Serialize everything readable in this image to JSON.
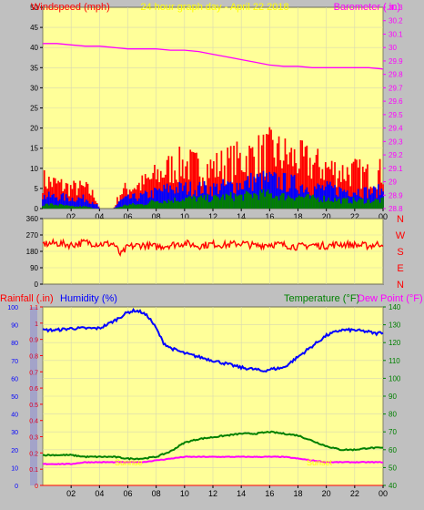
{
  "header": {
    "windspeed_label": "Windspeed (mph)",
    "title": "24 hour graph day - April 22 2018",
    "barometer_label": "Barometer (.in)"
  },
  "direction_letters": [
    "N",
    "W",
    "S",
    "E",
    "N"
  ],
  "labels_bottom": {
    "rainfall": "Rainfall (.in)",
    "humidity": "Humidity (%)",
    "temperature": "Temperature (°F)",
    "dewpoint": "Dew Point (°F)"
  },
  "colors": {
    "plot_bg": "#ffff99",
    "frame_bg": "#c0c0c0",
    "wind_gust": "#ff0000",
    "wind_avg": "#0000ff",
    "wind_low": "#008000",
    "barometer": "#ff00ff",
    "direction": "#ff0000",
    "humidity": "#0000ff",
    "temperature": "#008000",
    "dewpoint": "#ff00ff",
    "rain": "#ff0000",
    "title": "#ffff00"
  },
  "annotations": {
    "sunrise": "Sunrise",
    "sunset": "Sunset"
  },
  "chart_data": [
    {
      "type": "line",
      "name": "wind-barometer",
      "x_ticks": [
        "02",
        "04",
        "06",
        "08",
        "10",
        "12",
        "14",
        "16",
        "18",
        "20",
        "22",
        "00"
      ],
      "y_left_ticks": [
        0,
        5,
        10,
        15,
        20,
        25,
        30,
        35,
        40,
        45,
        50
      ],
      "ylim_left": [
        0,
        50
      ],
      "y_right_ticks": [
        "28.8",
        "28.9",
        "29",
        "29.1",
        "29.2",
        "29.3",
        "29.4",
        "29.5",
        "29.6",
        "29.7",
        "29.8",
        "29.9",
        "30",
        "30.1",
        "30.2",
        "30.3"
      ],
      "ylim_right": [
        28.8,
        30.3
      ],
      "series": [
        {
          "name": "Windspeed gust",
          "x": [
            0,
            1,
            2,
            3,
            3.7,
            4,
            5,
            5.5,
            6,
            7,
            8,
            9,
            10,
            11,
            12,
            13,
            14,
            15,
            16,
            17,
            18,
            19,
            20,
            21,
            22,
            23,
            24
          ],
          "values": [
            7,
            6,
            5,
            5,
            3,
            0,
            0,
            4,
            5,
            6,
            8,
            10,
            11,
            10,
            10,
            11,
            12,
            13,
            14,
            13,
            12,
            11,
            10,
            9,
            9,
            8,
            9
          ]
        },
        {
          "name": "Windspeed avg",
          "x": [
            0,
            1,
            2,
            3,
            3.7,
            4,
            5,
            5.5,
            6,
            7,
            8,
            9,
            10,
            11,
            12,
            13,
            14,
            15,
            16,
            17,
            18,
            19,
            20,
            21,
            22,
            23,
            24
          ],
          "values": [
            3,
            3,
            2.5,
            2.5,
            1.5,
            0,
            0,
            2,
            2.5,
            3,
            4,
            5,
            5,
            5,
            5,
            5.5,
            6,
            7,
            7,
            6.5,
            6,
            5,
            5,
            4.5,
            4.5,
            4,
            4.5
          ]
        },
        {
          "name": "Windspeed low",
          "x": [
            0,
            1,
            2,
            3,
            3.7,
            4,
            5,
            5.5,
            6,
            7,
            8,
            9,
            10,
            11,
            12,
            13,
            14,
            15,
            16,
            17,
            18,
            19,
            20,
            21,
            22,
            23,
            24
          ],
          "values": [
            1,
            1,
            0.5,
            0.5,
            0,
            0,
            0,
            0.5,
            1,
            1,
            2,
            2,
            2.5,
            2.5,
            2.5,
            3,
            3,
            3.5,
            3.5,
            3,
            3,
            2.5,
            2.5,
            2,
            2,
            2,
            2
          ]
        },
        {
          "name": "Barometer",
          "x": [
            0,
            1,
            2,
            3,
            4,
            5,
            6,
            7,
            8,
            9,
            10,
            11,
            12,
            13,
            14,
            15,
            16,
            17,
            18,
            19,
            20,
            21,
            22,
            23,
            24
          ],
          "values": [
            30.03,
            30.03,
            30.02,
            30.01,
            30.01,
            30.0,
            29.99,
            29.99,
            29.99,
            29.98,
            29.98,
            29.97,
            29.95,
            29.93,
            29.91,
            29.89,
            29.87,
            29.86,
            29.86,
            29.85,
            29.85,
            29.85,
            29.85,
            29.85,
            29.84
          ]
        }
      ]
    },
    {
      "type": "line",
      "name": "wind-direction",
      "x_ticks": [
        "02",
        "04",
        "06",
        "08",
        "10",
        "12",
        "14",
        "16",
        "18",
        "20",
        "22",
        "00"
      ],
      "y_ticks": [
        0,
        90,
        180,
        270,
        360
      ],
      "ylim": [
        0,
        360
      ],
      "series": [
        {
          "name": "Direction",
          "x": [
            0,
            1,
            2,
            3,
            4,
            5,
            5.5,
            6,
            7,
            8,
            9,
            10,
            11,
            12,
            13,
            14,
            15,
            16,
            17,
            18,
            19,
            20,
            21,
            22,
            23,
            24
          ],
          "values": [
            220,
            225,
            215,
            230,
            220,
            222,
            160,
            205,
            215,
            205,
            215,
            225,
            210,
            220,
            215,
            225,
            210,
            220,
            215,
            205,
            215,
            210,
            220,
            215,
            210,
            225
          ]
        }
      ]
    },
    {
      "type": "line",
      "name": "humidity-temperature",
      "x_ticks": [
        "02",
        "04",
        "06",
        "08",
        "10",
        "12",
        "14",
        "16",
        "18",
        "20",
        "22",
        "00"
      ],
      "y_left_ticks": [
        0,
        10,
        20,
        30,
        40,
        50,
        60,
        70,
        80,
        90,
        100
      ],
      "ylim_left": [
        0,
        100
      ],
      "y_rain_ticks": [
        "0",
        "0.1",
        "0.2",
        "0.3",
        "0.4",
        "0.5",
        "0.6",
        "0.7",
        "0.8",
        "0.9",
        "1",
        "1.1"
      ],
      "ylim_rain": [
        0,
        1.1
      ],
      "y_right_ticks": [
        40,
        50,
        60,
        70,
        80,
        90,
        100,
        110,
        120,
        130,
        140
      ],
      "ylim_right": [
        40,
        140
      ],
      "series": [
        {
          "name": "Humidity",
          "x": [
            0,
            1,
            2,
            3,
            4,
            5,
            6,
            6.5,
            7,
            7.5,
            8,
            8.5,
            9,
            10,
            11,
            12,
            13,
            14,
            15,
            15.5,
            16,
            17,
            18,
            19,
            20,
            21,
            22,
            23,
            23.5,
            24
          ],
          "values": [
            87,
            87,
            88,
            88,
            88,
            92,
            97,
            98,
            97,
            94,
            88,
            80,
            77,
            74,
            72,
            70,
            68,
            66,
            65,
            64,
            65,
            66,
            72,
            78,
            84,
            87,
            87,
            86,
            85,
            86
          ]
        },
        {
          "name": "Temperature",
          "x": [
            0,
            1,
            2,
            3,
            4,
            5,
            6,
            7,
            8,
            9,
            10,
            11,
            12,
            13,
            14,
            15,
            16,
            17,
            18,
            19,
            20,
            21,
            22,
            23,
            24
          ],
          "values": [
            57,
            57,
            57,
            56,
            56,
            56,
            55,
            55,
            56,
            59,
            64,
            66,
            67,
            68,
            69,
            69,
            70,
            69,
            68,
            65,
            62,
            60,
            60,
            61,
            61
          ]
        },
        {
          "name": "Dew Point",
          "x": [
            0,
            1,
            2,
            3,
            4,
            5,
            6,
            7,
            8,
            9,
            10,
            11,
            12,
            13,
            14,
            15,
            16,
            17,
            18,
            19,
            20,
            21,
            22,
            23,
            24
          ],
          "values": [
            52,
            52,
            52,
            53,
            53,
            53,
            53,
            53,
            54,
            55,
            56,
            56,
            56,
            56,
            56,
            56,
            56,
            56,
            55,
            54,
            53,
            53,
            53,
            53,
            53
          ]
        },
        {
          "name": "Rainfall",
          "x": [
            0,
            24
          ],
          "values": [
            0,
            0
          ]
        }
      ]
    }
  ]
}
